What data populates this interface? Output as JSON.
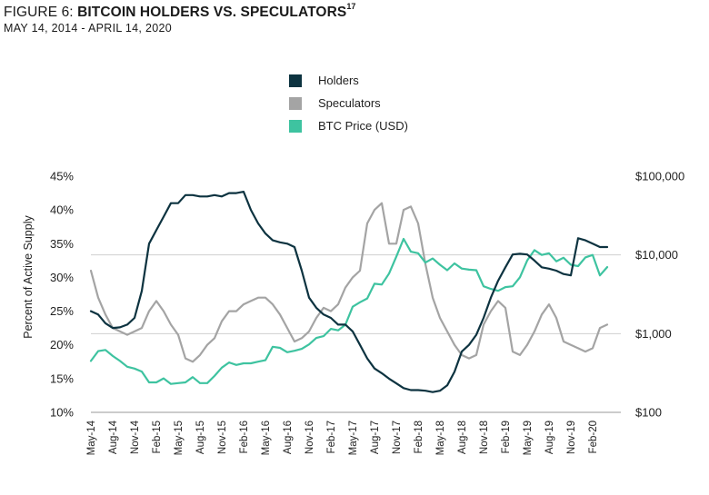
{
  "header": {
    "figure_prefix": "FIGURE 6: ",
    "title": "BITCOIN HOLDERS VS. SPECULATORS",
    "superscript": "17",
    "subtitle": "MAY 14, 2014 -  APRIL 14, 2020"
  },
  "chart_data": {
    "type": "line",
    "title": "FIGURE 6: BITCOIN HOLDERS VS. SPECULATORS",
    "subtitle": "MAY 14, 2014 -  APRIL 14, 2020",
    "ylabel": "Percent of Active Supply",
    "ylim": [
      10,
      45
    ],
    "y_ticks": [
      "45%",
      "40%",
      "35%",
      "30%",
      "25%",
      "20%",
      "15%",
      "10%"
    ],
    "y2_scale": "log",
    "y2lim": [
      100,
      100000
    ],
    "y2_ticks": [
      "$100,000",
      "$10,000",
      "$1,000",
      "$100"
    ],
    "x_ticks": [
      "May-14",
      "Aug-14",
      "Nov-14",
      "Feb-15",
      "May-15",
      "Aug-15",
      "Nov-15",
      "Feb-16",
      "May-16",
      "Aug-16",
      "Nov-16",
      "Feb-17",
      "May-17",
      "Aug-17",
      "Nov-17",
      "Feb-18",
      "May-18",
      "Aug-18",
      "Nov-18",
      "Feb-19",
      "May-19",
      "Aug-19",
      "Nov-19",
      "Feb-20"
    ],
    "grid": "horizontal",
    "legend": "top-center",
    "series": [
      {
        "name": "Holders",
        "axis": "left",
        "color": "#0d3340",
        "points": [
          [
            "May-14",
            25
          ],
          [
            "Jun-14",
            24.5
          ],
          [
            "Jul-14",
            23.2
          ],
          [
            "Aug-14",
            22.5
          ],
          [
            "Sep-14",
            22.6
          ],
          [
            "Oct-14",
            23
          ],
          [
            "Nov-14",
            24
          ],
          [
            "Dec-14",
            28
          ],
          [
            "Jan-15",
            35
          ],
          [
            "Feb-15",
            37
          ],
          [
            "Mar-15",
            39
          ],
          [
            "Apr-15",
            41
          ],
          [
            "May-15",
            41
          ],
          [
            "Jun-15",
            42.2
          ],
          [
            "Jul-15",
            42.2
          ],
          [
            "Aug-15",
            42
          ],
          [
            "Sep-15",
            42
          ],
          [
            "Oct-15",
            42.2
          ],
          [
            "Nov-15",
            42
          ],
          [
            "Dec-15",
            42.5
          ],
          [
            "Jan-16",
            42.5
          ],
          [
            "Feb-16",
            42.7
          ],
          [
            "Mar-16",
            40
          ],
          [
            "Apr-16",
            38
          ],
          [
            "May-16",
            36.5
          ],
          [
            "Jun-16",
            35.5
          ],
          [
            "Jul-16",
            35.2
          ],
          [
            "Aug-16",
            35
          ],
          [
            "Sep-16",
            34.5
          ],
          [
            "Oct-16",
            31
          ],
          [
            "Nov-16",
            27
          ],
          [
            "Dec-16",
            25.5
          ],
          [
            "Jan-17",
            24.5
          ],
          [
            "Feb-17",
            24
          ],
          [
            "Mar-17",
            23
          ],
          [
            "Apr-17",
            23
          ],
          [
            "May-17",
            22
          ],
          [
            "Jun-17",
            20
          ],
          [
            "Jul-17",
            18
          ],
          [
            "Aug-17",
            16.5
          ],
          [
            "Sep-17",
            15.8
          ],
          [
            "Oct-17",
            15
          ],
          [
            "Nov-17",
            14.3
          ],
          [
            "Dec-17",
            13.6
          ],
          [
            "Jan-18",
            13.3
          ],
          [
            "Feb-18",
            13.3
          ],
          [
            "Mar-18",
            13.2
          ],
          [
            "Apr-18",
            13
          ],
          [
            "May-18",
            13.2
          ],
          [
            "Jun-18",
            14
          ],
          [
            "Jul-18",
            16
          ],
          [
            "Aug-18",
            19
          ],
          [
            "Sep-18",
            20
          ],
          [
            "Oct-18",
            21.5
          ],
          [
            "Nov-18",
            24
          ],
          [
            "Dec-18",
            27
          ],
          [
            "Jan-19",
            29.5
          ],
          [
            "Feb-19",
            31.5
          ],
          [
            "Mar-19",
            33.4
          ],
          [
            "Apr-19",
            33.5
          ],
          [
            "May-19",
            33.4
          ],
          [
            "Jun-19",
            32.5
          ],
          [
            "Jul-19",
            31.5
          ],
          [
            "Aug-19",
            31.3
          ],
          [
            "Sep-19",
            31
          ],
          [
            "Oct-19",
            30.5
          ],
          [
            "Nov-19",
            30.3
          ],
          [
            "Dec-19",
            35.8
          ],
          [
            "Jan-20",
            35.5
          ],
          [
            "Feb-20",
            35
          ],
          [
            "Mar-20",
            34.5
          ],
          [
            "Apr-20",
            34.5
          ]
        ]
      },
      {
        "name": "Speculators",
        "axis": "left",
        "color": "#a4a4a4",
        "points": [
          [
            "May-14",
            31
          ],
          [
            "Jun-14",
            27
          ],
          [
            "Jul-14",
            24.5
          ],
          [
            "Aug-14",
            22.5
          ],
          [
            "Sep-14",
            22
          ],
          [
            "Oct-14",
            21.5
          ],
          [
            "Nov-14",
            22
          ],
          [
            "Dec-14",
            22.5
          ],
          [
            "Jan-15",
            25
          ],
          [
            "Feb-15",
            26.5
          ],
          [
            "Mar-15",
            25
          ],
          [
            "Apr-15",
            23
          ],
          [
            "May-15",
            21.5
          ],
          [
            "Jun-15",
            18
          ],
          [
            "Jul-15",
            17.5
          ],
          [
            "Aug-15",
            18.5
          ],
          [
            "Sep-15",
            20
          ],
          [
            "Oct-15",
            21
          ],
          [
            "Nov-15",
            23.5
          ],
          [
            "Dec-15",
            25
          ],
          [
            "Jan-16",
            25
          ],
          [
            "Feb-16",
            26
          ],
          [
            "Mar-16",
            26.5
          ],
          [
            "Apr-16",
            27
          ],
          [
            "May-16",
            27
          ],
          [
            "Jun-16",
            26
          ],
          [
            "Jul-16",
            24.5
          ],
          [
            "Aug-16",
            22.5
          ],
          [
            "Sep-16",
            20.5
          ],
          [
            "Oct-16",
            21
          ],
          [
            "Nov-16",
            22
          ],
          [
            "Dec-16",
            24
          ],
          [
            "Jan-17",
            25.5
          ],
          [
            "Feb-17",
            25
          ],
          [
            "Mar-17",
            26
          ],
          [
            "Apr-17",
            28.5
          ],
          [
            "May-17",
            30
          ],
          [
            "Jun-17",
            31
          ],
          [
            "Jul-17",
            38
          ],
          [
            "Aug-17",
            40
          ],
          [
            "Sep-17",
            41
          ],
          [
            "Oct-17",
            35
          ],
          [
            "Nov-17",
            35
          ],
          [
            "Dec-17",
            40
          ],
          [
            "Jan-18",
            40.5
          ],
          [
            "Feb-18",
            38
          ],
          [
            "Mar-18",
            32
          ],
          [
            "Apr-18",
            27
          ],
          [
            "May-18",
            24
          ],
          [
            "Jun-18",
            22
          ],
          [
            "Jul-18",
            20
          ],
          [
            "Aug-18",
            18.5
          ],
          [
            "Sep-18",
            18
          ],
          [
            "Oct-18",
            18.5
          ],
          [
            "Nov-18",
            23
          ],
          [
            "Dec-18",
            25
          ],
          [
            "Jan-19",
            26.5
          ],
          [
            "Feb-19",
            25.5
          ],
          [
            "Mar-19",
            19
          ],
          [
            "Apr-19",
            18.5
          ],
          [
            "May-19",
            20
          ],
          [
            "Jun-19",
            22
          ],
          [
            "Jul-19",
            24.5
          ],
          [
            "Aug-19",
            26
          ],
          [
            "Sep-19",
            24
          ],
          [
            "Oct-19",
            20.5
          ],
          [
            "Nov-19",
            20
          ],
          [
            "Dec-19",
            19.5
          ],
          [
            "Jan-20",
            19
          ],
          [
            "Feb-20",
            19.5
          ],
          [
            "Mar-20",
            22.5
          ],
          [
            "Apr-20",
            23
          ]
        ]
      },
      {
        "name": "BTC Price (USD)",
        "axis": "right",
        "color": "#3ec3a0",
        "points": [
          [
            "May-14",
            450
          ],
          [
            "Jun-14",
            600
          ],
          [
            "Jul-14",
            620
          ],
          [
            "Aug-14",
            520
          ],
          [
            "Sep-14",
            450
          ],
          [
            "Oct-14",
            380
          ],
          [
            "Nov-14",
            360
          ],
          [
            "Dec-14",
            330
          ],
          [
            "Jan-15",
            240
          ],
          [
            "Feb-15",
            240
          ],
          [
            "Mar-15",
            270
          ],
          [
            "Apr-15",
            230
          ],
          [
            "May-15",
            235
          ],
          [
            "Jun-15",
            240
          ],
          [
            "Jul-15",
            280
          ],
          [
            "Aug-15",
            235
          ],
          [
            "Sep-15",
            235
          ],
          [
            "Oct-15",
            290
          ],
          [
            "Nov-15",
            370
          ],
          [
            "Dec-15",
            430
          ],
          [
            "Jan-16",
            400
          ],
          [
            "Feb-16",
            420
          ],
          [
            "Mar-16",
            420
          ],
          [
            "Apr-16",
            440
          ],
          [
            "May-16",
            460
          ],
          [
            "Jun-16",
            680
          ],
          [
            "Jul-16",
            660
          ],
          [
            "Aug-16",
            580
          ],
          [
            "Sep-16",
            605
          ],
          [
            "Oct-16",
            640
          ],
          [
            "Nov-16",
            730
          ],
          [
            "Dec-16",
            880
          ],
          [
            "Jan-17",
            930
          ],
          [
            "Feb-17",
            1150
          ],
          [
            "Mar-17",
            1100
          ],
          [
            "Apr-17",
            1300
          ],
          [
            "May-17",
            2200
          ],
          [
            "Jun-17",
            2500
          ],
          [
            "Jul-17",
            2800
          ],
          [
            "Aug-17",
            4300
          ],
          [
            "Sep-17",
            4200
          ],
          [
            "Oct-17",
            5800
          ],
          [
            "Nov-17",
            9500
          ],
          [
            "Dec-17",
            16000
          ],
          [
            "Jan-18",
            11000
          ],
          [
            "Feb-18",
            10500
          ],
          [
            "Mar-18",
            8000
          ],
          [
            "Apr-18",
            9000
          ],
          [
            "May-18",
            7500
          ],
          [
            "Jun-18",
            6400
          ],
          [
            "Jul-18",
            7800
          ],
          [
            "Aug-18",
            6700
          ],
          [
            "Sep-18",
            6500
          ],
          [
            "Oct-18",
            6400
          ],
          [
            "Nov-18",
            4000
          ],
          [
            "Dec-18",
            3700
          ],
          [
            "Jan-19",
            3500
          ],
          [
            "Feb-19",
            3900
          ],
          [
            "Mar-19",
            4000
          ],
          [
            "Apr-19",
            5200
          ],
          [
            "May-19",
            8500
          ],
          [
            "Jun-19",
            11500
          ],
          [
            "Jul-19",
            10000
          ],
          [
            "Aug-19",
            10500
          ],
          [
            "Sep-19",
            8300
          ],
          [
            "Oct-19",
            9200
          ],
          [
            "Nov-19",
            7500
          ],
          [
            "Dec-19",
            7200
          ],
          [
            "Jan-20",
            9300
          ],
          [
            "Feb-20",
            10000
          ],
          [
            "Mar-20",
            5500
          ],
          [
            "Apr-20",
            7000
          ]
        ]
      }
    ]
  },
  "legend": {
    "items": [
      {
        "label": "Holders",
        "color": "#0d3340"
      },
      {
        "label": "Speculators",
        "color": "#a4a4a4"
      },
      {
        "label": "BTC Price (USD)",
        "color": "#3ec3a0"
      }
    ]
  }
}
